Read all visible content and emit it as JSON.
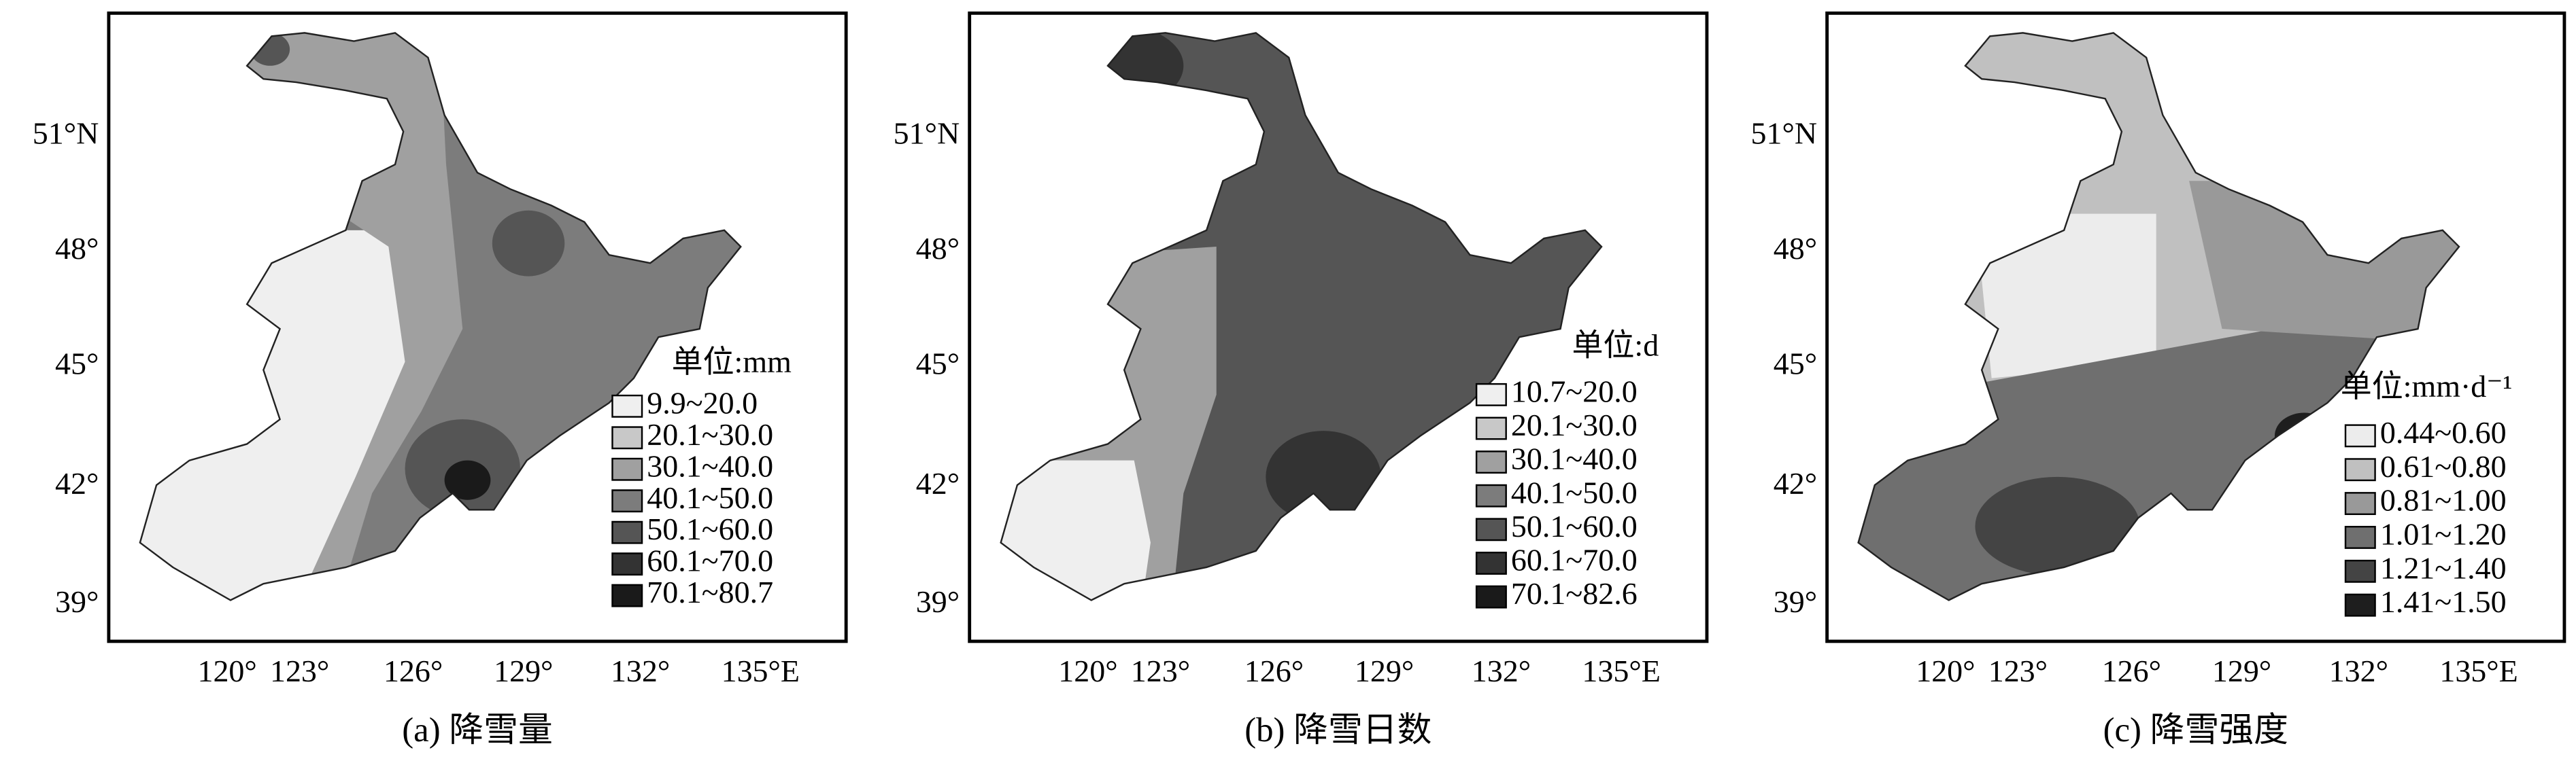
{
  "panels": [
    {
      "caption": "(a) 降雪量",
      "unit": "单位:mm",
      "legend": [
        {
          "label": "9.9~20.0",
          "color": "#efefef"
        },
        {
          "label": "20.1~30.0",
          "color": "#c8c8c8"
        },
        {
          "label": "30.1~40.0",
          "color": "#a0a0a0"
        },
        {
          "label": "40.1~50.0",
          "color": "#7c7c7c"
        },
        {
          "label": "50.1~60.0",
          "color": "#555555"
        },
        {
          "label": "60.1~70.0",
          "color": "#333333"
        },
        {
          "label": "70.1~80.7",
          "color": "#1a1a1a"
        }
      ]
    },
    {
      "caption": "(b) 降雪日数",
      "unit": "单位:d",
      "legend": [
        {
          "label": "10.7~20.0",
          "color": "#efefef"
        },
        {
          "label": "20.1~30.0",
          "color": "#c8c8c8"
        },
        {
          "label": "30.1~40.0",
          "color": "#a0a0a0"
        },
        {
          "label": "40.1~50.0",
          "color": "#7c7c7c"
        },
        {
          "label": "50.1~60.0",
          "color": "#555555"
        },
        {
          "label": "60.1~70.0",
          "color": "#333333"
        },
        {
          "label": "70.1~82.6",
          "color": "#1a1a1a"
        }
      ]
    },
    {
      "caption": "(c) 降雪强度",
      "unit": "单位:mm·d⁻¹",
      "legend": [
        {
          "label": "0.44~0.60",
          "color": "#ececec"
        },
        {
          "label": "0.61~0.80",
          "color": "#c0c0c0"
        },
        {
          "label": "0.81~1.00",
          "color": "#999999"
        },
        {
          "label": "1.01~1.20",
          "color": "#6f6f6f"
        },
        {
          "label": "1.21~1.40",
          "color": "#444444"
        },
        {
          "label": "1.41~1.50",
          "color": "#1e1e1e"
        }
      ]
    }
  ],
  "x_labels": [
    "120°",
    "123°",
    "126°",
    "129°",
    "132°",
    "135°E"
  ],
  "y_labels": [
    "51°N",
    "48°",
    "45°",
    "42°",
    "39°"
  ]
}
